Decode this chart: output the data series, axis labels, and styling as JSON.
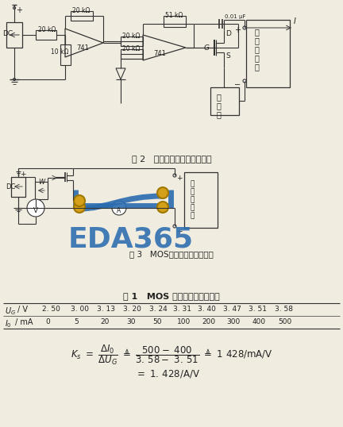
{
  "fig2_caption": "图 2   恒流型电子负载电原理图",
  "fig3_caption": "图 3   MOS管放大系数实验电路",
  "table_title": "表 1   MOS 管放大系数实验数据",
  "row1_label_italic": "U",
  "row1_label_sub": "G",
  "row1_label_unit": "/ V",
  "row1_values": [
    "2. 50",
    "3. 00",
    "3. 13",
    "3. 20",
    "3. 24",
    "3. 31",
    "3. 40",
    "3. 47",
    "3. 51",
    "3. 58"
  ],
  "row2_label_italic": "I",
  "row2_label_sub": "0",
  "row2_label_unit": "/ mA",
  "row2_values": [
    "0",
    "5",
    "20",
    "30",
    "50",
    "100",
    "200",
    "300",
    "400",
    "500"
  ],
  "bg_color": "#f0ece0",
  "line_color": "#333333",
  "watermark_text": "EDA365",
  "watermark_color": "#2b6cb0",
  "pcb_gold": "#d4a017",
  "pcb_blue": "#2b6cb0",
  "table_border_color": "#555555",
  "text_color": "#222222"
}
